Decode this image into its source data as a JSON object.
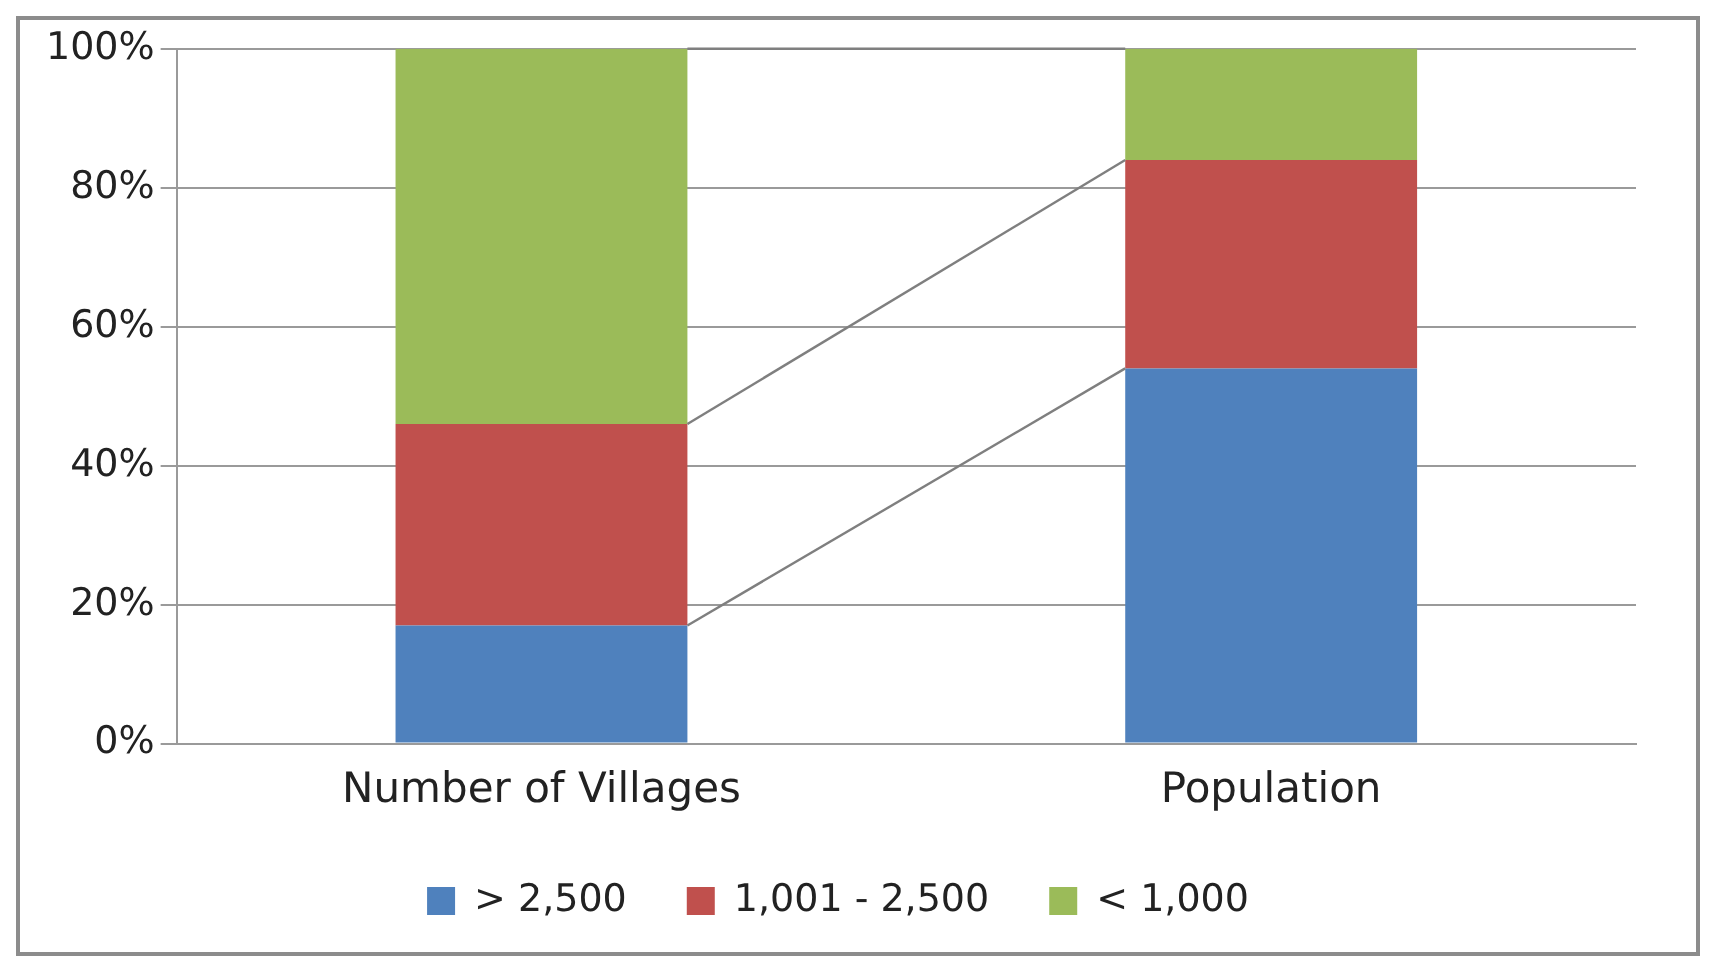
{
  "chart_data": {
    "type": "bar",
    "stacked": true,
    "categories": [
      "Number of Villages",
      "Population"
    ],
    "series": [
      {
        "name": "> 2,500",
        "color": "#4f81bd",
        "values": [
          17,
          54
        ]
      },
      {
        "name": "1,001 - 2,500",
        "color": "#c0504d",
        "values": [
          29,
          30
        ]
      },
      {
        "name": "< 1,000",
        "color": "#9bbb59",
        "values": [
          54,
          16
        ]
      }
    ],
    "ylim": [
      0,
      100
    ],
    "yticks": [
      {
        "value": 0,
        "label": "0%"
      },
      {
        "value": 20,
        "label": "20%"
      },
      {
        "value": 40,
        "label": "40%"
      },
      {
        "value": 60,
        "label": "60%"
      },
      {
        "value": 80,
        "label": "80%"
      },
      {
        "value": 100,
        "label": "100%"
      }
    ],
    "grid": "y",
    "legend": "bottom"
  }
}
